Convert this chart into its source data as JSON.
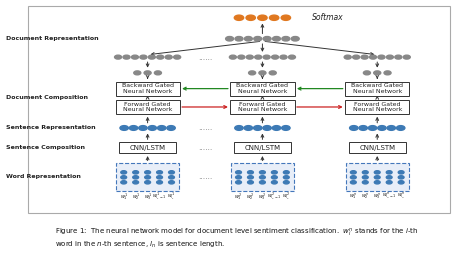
{
  "bg_color": "#f8f8f8",
  "node_blue": "#3d7ab5",
  "node_orange": "#e07820",
  "node_gray": "#888888",
  "box_edge": "#333333",
  "arrow_color": "#333333",
  "red_arrow": "#cc2222",
  "green_arrow": "#228822",
  "label_color": "#222222",
  "softmax_label": "Softmax",
  "layer_labels": [
    "Document Representation",
    "Document Composition",
    "Sentence Representation",
    "Sentence Composition",
    "Word Representation"
  ],
  "fwd_box_label": "Forward Gated\nNeural Network",
  "bwd_box_label": "Backward Gated\nNeural Network",
  "cnn_box_label": "CNN/LSTM"
}
